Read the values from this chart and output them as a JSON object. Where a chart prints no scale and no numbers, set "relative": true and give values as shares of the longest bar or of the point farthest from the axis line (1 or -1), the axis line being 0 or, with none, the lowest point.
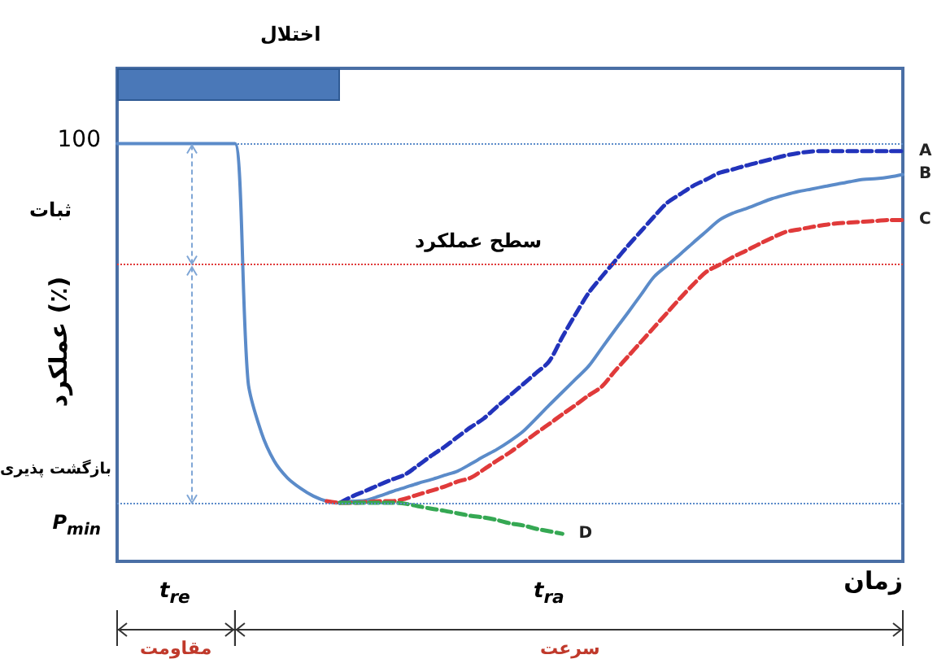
{
  "chart_data": {
    "type": "line",
    "relative": true,
    "xlabel": "زمان",
    "ylabel": "عملکرد (٪)",
    "categories": [
      null,
      null,
      null,
      null,
      null,
      null,
      null,
      null,
      null,
      null,
      null,
      null,
      null,
      null,
      null,
      null,
      null,
      null,
      null,
      null,
      null,
      null,
      null,
      null,
      null,
      null,
      null,
      null,
      null,
      null,
      null,
      null,
      null,
      null,
      null,
      null,
      null,
      null,
      null,
      null,
      null,
      null,
      null,
      null,
      null,
      null,
      null,
      null,
      null,
      null,
      null,
      null,
      null,
      null,
      null,
      null,
      null,
      null,
      null,
      null,
      null
    ],
    "series": [
      {
        "name": "B",
        "color": "#5b8bc9",
        "line_style": "solid",
        "values": [
          1,
          1,
          1,
          1,
          1,
          1,
          1,
          1,
          1,
          1,
          0.43,
          0.31,
          0.24,
          0.2,
          0.175,
          0.156,
          0.144,
          0.14,
          0.144,
          0.146,
          0.156,
          0.167,
          0.177,
          0.187,
          0.196,
          0.206,
          0.216,
          0.233,
          0.251,
          0.268,
          0.288,
          0.311,
          0.342,
          0.374,
          0.405,
          0.436,
          0.467,
          0.51,
          0.553,
          0.595,
          0.638,
          0.681,
          0.708,
          0.735,
          0.763,
          0.79,
          0.817,
          0.833,
          0.844,
          0.856,
          0.868,
          0.877,
          0.885,
          0.891,
          0.897,
          0.903,
          0.909,
          0.914,
          0.916,
          0.92,
          0.926
        ]
      },
      {
        "name": "A",
        "color": "#2233bb",
        "line_style": "dashed",
        "values": [
          null,
          null,
          null,
          null,
          null,
          null,
          null,
          null,
          null,
          null,
          null,
          null,
          null,
          null,
          null,
          null,
          null,
          0.14,
          0.156,
          0.169,
          0.183,
          0.196,
          0.208,
          0.23,
          0.253,
          0.274,
          0.298,
          0.321,
          0.342,
          0.37,
          0.397,
          0.424,
          0.451,
          0.479,
          0.537,
          0.591,
          0.642,
          0.681,
          0.718,
          0.755,
          0.79,
          0.825,
          0.858,
          0.879,
          0.899,
          0.914,
          0.93,
          0.938,
          0.947,
          0.955,
          0.963,
          0.971,
          0.977,
          0.981,
          0.982,
          0.982,
          0.982,
          0.982,
          0.982,
          0.982,
          0.982
        ]
      },
      {
        "name": "C",
        "color": "#e03a3a",
        "line_style": "dashed",
        "values": [
          null,
          null,
          null,
          null,
          null,
          null,
          null,
          null,
          null,
          null,
          null,
          null,
          null,
          null,
          null,
          null,
          0.144,
          0.14,
          0.14,
          0.142,
          0.144,
          0.144,
          0.15,
          0.16,
          0.169,
          0.179,
          0.191,
          0.2,
          0.22,
          0.241,
          0.261,
          0.284,
          0.307,
          0.329,
          0.352,
          0.374,
          0.397,
          0.418,
          0.455,
          0.49,
          0.525,
          0.56,
          0.595,
          0.63,
          0.663,
          0.693,
          0.71,
          0.728,
          0.743,
          0.759,
          0.774,
          0.788,
          0.794,
          0.8,
          0.805,
          0.809,
          0.811,
          0.813,
          0.815,
          0.817,
          0.817
        ]
      },
      {
        "name": "D",
        "color": "#35a853",
        "line_style": "dashed",
        "values": [
          null,
          null,
          null,
          null,
          null,
          null,
          null,
          null,
          null,
          null,
          null,
          null,
          null,
          null,
          null,
          null,
          null,
          0.14,
          0.14,
          0.14,
          0.14,
          0.14,
          0.138,
          0.132,
          0.126,
          0.121,
          0.115,
          0.109,
          0.105,
          0.099,
          0.091,
          0.086,
          0.078,
          0.072,
          0.066,
          null,
          null,
          null,
          null,
          null,
          null,
          null,
          null,
          null,
          null,
          null,
          null,
          null,
          null,
          null,
          null,
          null,
          null,
          null,
          null,
          null,
          null,
          null,
          null,
          null,
          null
        ]
      }
    ],
    "ref_lines": [
      {
        "axis": "y",
        "value": 1,
        "label": "100",
        "color": "#5b8bc9",
        "line_style": "dotted"
      },
      {
        "axis": "y",
        "value": 0.708,
        "label": "سطح عملکرد",
        "color": "#e03a3a",
        "line_style": "dotted"
      },
      {
        "axis": "y",
        "value": 0.136,
        "label": "P$_{min}$",
        "color": "#5b8bc9",
        "line_style": "dotted"
      }
    ],
    "annotations": [
      "اختلال",
      "ثبات",
      "بازگشت پذیری",
      "t$_{re}$",
      "t$_{ra}$",
      "مقاومت",
      "سرعت"
    ],
    "marker": "none",
    "legend": false,
    "grid": false
  }
}
